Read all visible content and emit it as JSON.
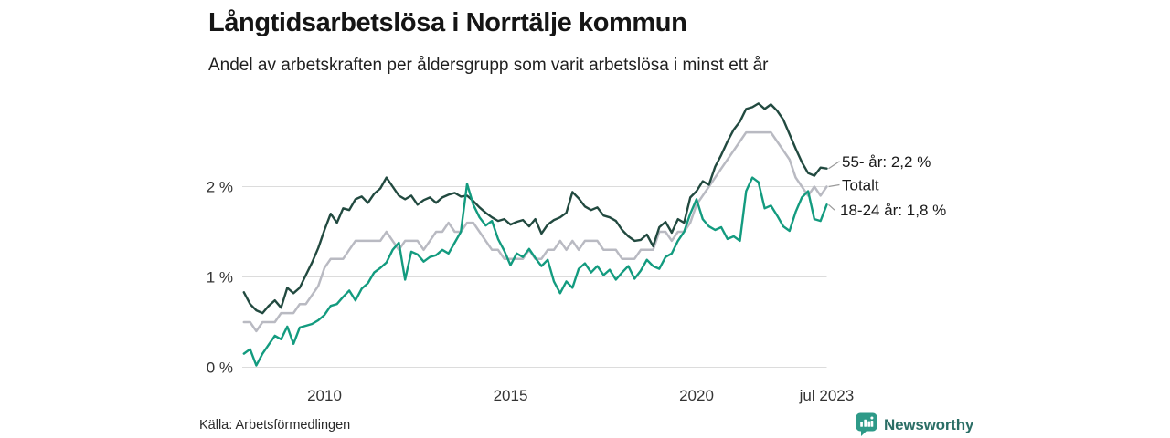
{
  "chart_data": {
    "type": "line",
    "title": "Långtidsarbetslösa i Norrtälje kommun",
    "subtitle": "Andel av arbetskraften per åldersgrupp som varit arbetslösa i minst ett år",
    "x_unit": "year",
    "x_start": 2007.8333,
    "x_step": 0.16667,
    "xlim": [
      2007.8,
      2023.5
    ],
    "ylim": [
      0,
      2.95
    ],
    "grid": "horizontal",
    "legend_position": "line-end-labels-right",
    "x_axis": {
      "ticks": [
        {
          "label": "2010",
          "year": 2010
        },
        {
          "label": "2015",
          "year": 2015
        },
        {
          "label": "2020",
          "year": 2020
        },
        {
          "label": "jul 2023",
          "year": 2023.5
        }
      ]
    },
    "y_axis": {
      "ticks": [
        {
          "label": "0 %",
          "value": 0
        },
        {
          "label": "1 %",
          "value": 1
        },
        {
          "label": "2 %",
          "value": 2
        }
      ]
    },
    "series": [
      {
        "name": "55- år",
        "color": "#224a40",
        "end_value_label": "2,2 %",
        "values": [
          0.83,
          0.7,
          0.63,
          0.6,
          0.68,
          0.74,
          0.66,
          0.88,
          0.82,
          0.88,
          1.02,
          1.16,
          1.32,
          1.52,
          1.7,
          1.6,
          1.76,
          1.74,
          1.86,
          1.89,
          1.82,
          1.92,
          1.98,
          2.1,
          2.0,
          1.9,
          1.86,
          1.9,
          1.8,
          1.85,
          1.88,
          1.82,
          1.88,
          1.91,
          1.93,
          1.89,
          1.9,
          1.84,
          1.77,
          1.71,
          1.66,
          1.62,
          1.64,
          1.58,
          1.61,
          1.63,
          1.56,
          1.64,
          1.48,
          1.58,
          1.63,
          1.66,
          1.71,
          1.94,
          1.87,
          1.78,
          1.74,
          1.77,
          1.68,
          1.66,
          1.62,
          1.52,
          1.45,
          1.4,
          1.41,
          1.47,
          1.34,
          1.55,
          1.61,
          1.49,
          1.64,
          1.6,
          1.88,
          1.95,
          2.06,
          2.02,
          2.22,
          2.35,
          2.5,
          2.63,
          2.72,
          2.86,
          2.88,
          2.92,
          2.86,
          2.91,
          2.84,
          2.74,
          2.58,
          2.42,
          2.27,
          2.15,
          2.12,
          2.21,
          2.2
        ]
      },
      {
        "name": "Totalt",
        "color": "#b9bac2",
        "end_value_label": "",
        "values": [
          0.5,
          0.5,
          0.4,
          0.5,
          0.5,
          0.5,
          0.6,
          0.6,
          0.6,
          0.7,
          0.7,
          0.8,
          0.9,
          1.1,
          1.2,
          1.2,
          1.2,
          1.3,
          1.4,
          1.4,
          1.4,
          1.4,
          1.4,
          1.5,
          1.4,
          1.3,
          1.4,
          1.4,
          1.4,
          1.3,
          1.4,
          1.5,
          1.5,
          1.6,
          1.5,
          1.5,
          1.6,
          1.6,
          1.5,
          1.4,
          1.3,
          1.3,
          1.2,
          1.2,
          1.2,
          1.2,
          1.3,
          1.2,
          1.2,
          1.3,
          1.3,
          1.4,
          1.3,
          1.4,
          1.3,
          1.4,
          1.4,
          1.4,
          1.3,
          1.3,
          1.3,
          1.2,
          1.2,
          1.2,
          1.3,
          1.3,
          1.3,
          1.5,
          1.5,
          1.4,
          1.5,
          1.5,
          1.6,
          1.8,
          1.9,
          2.0,
          2.1,
          2.2,
          2.3,
          2.4,
          2.5,
          2.6,
          2.6,
          2.6,
          2.6,
          2.6,
          2.5,
          2.4,
          2.3,
          2.1,
          2.0,
          1.9,
          2.0,
          1.9,
          2.0
        ]
      },
      {
        "name": "18-24 år",
        "color": "#139b7f",
        "end_value_label": "1,8 %",
        "values": [
          0.15,
          0.2,
          0.02,
          0.15,
          0.25,
          0.35,
          0.31,
          0.45,
          0.26,
          0.44,
          0.46,
          0.48,
          0.52,
          0.58,
          0.68,
          0.7,
          0.78,
          0.85,
          0.74,
          0.87,
          0.93,
          1.05,
          1.1,
          1.16,
          1.3,
          1.38,
          0.97,
          1.28,
          1.25,
          1.17,
          1.22,
          1.24,
          1.3,
          1.26,
          1.38,
          1.5,
          2.03,
          1.8,
          1.66,
          1.57,
          1.62,
          1.42,
          1.29,
          1.13,
          1.26,
          1.22,
          1.31,
          1.21,
          1.12,
          1.19,
          0.95,
          0.82,
          0.95,
          0.88,
          1.09,
          1.15,
          1.05,
          1.12,
          1.02,
          1.08,
          0.97,
          1.05,
          1.12,
          0.98,
          1.07,
          1.19,
          1.12,
          1.09,
          1.22,
          1.26,
          1.4,
          1.5,
          1.7,
          1.86,
          1.64,
          1.56,
          1.52,
          1.55,
          1.42,
          1.45,
          1.4,
          1.95,
          2.1,
          2.05,
          1.76,
          1.79,
          1.68,
          1.56,
          1.51,
          1.72,
          1.88,
          1.95,
          1.64,
          1.62,
          1.8
        ]
      }
    ],
    "annotations": [
      {
        "label": "55- år: 2,2 %",
        "series": 0,
        "y": 2.28
      },
      {
        "label": "Totalt",
        "series": 1,
        "y": 2.02
      },
      {
        "label": "18-24 år: 1,8 %",
        "series": 2,
        "y": 1.74
      }
    ]
  },
  "footer": {
    "source": "Källa: Arbetsförmedlingen",
    "brand": "Newsworthy"
  },
  "colors": {
    "series_55": "#224a40",
    "series_total": "#b9bac2",
    "series_18_24": "#139b7f",
    "gridline": "#dcdcdc",
    "brand_icon": "#2e9a88",
    "brand_text": "#2b6e66"
  }
}
